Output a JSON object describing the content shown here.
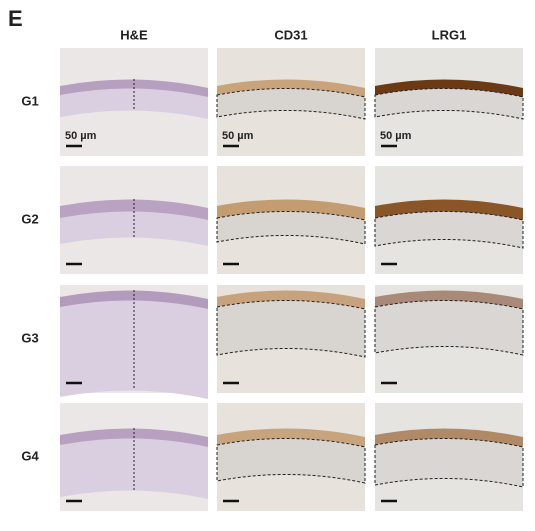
{
  "panel_label": "E",
  "columns": [
    "H&E",
    "CD31",
    "LRG1"
  ],
  "rows": [
    "G1",
    "G2",
    "G3",
    "G4"
  ],
  "scale_bar_label": "50 µm"
}
